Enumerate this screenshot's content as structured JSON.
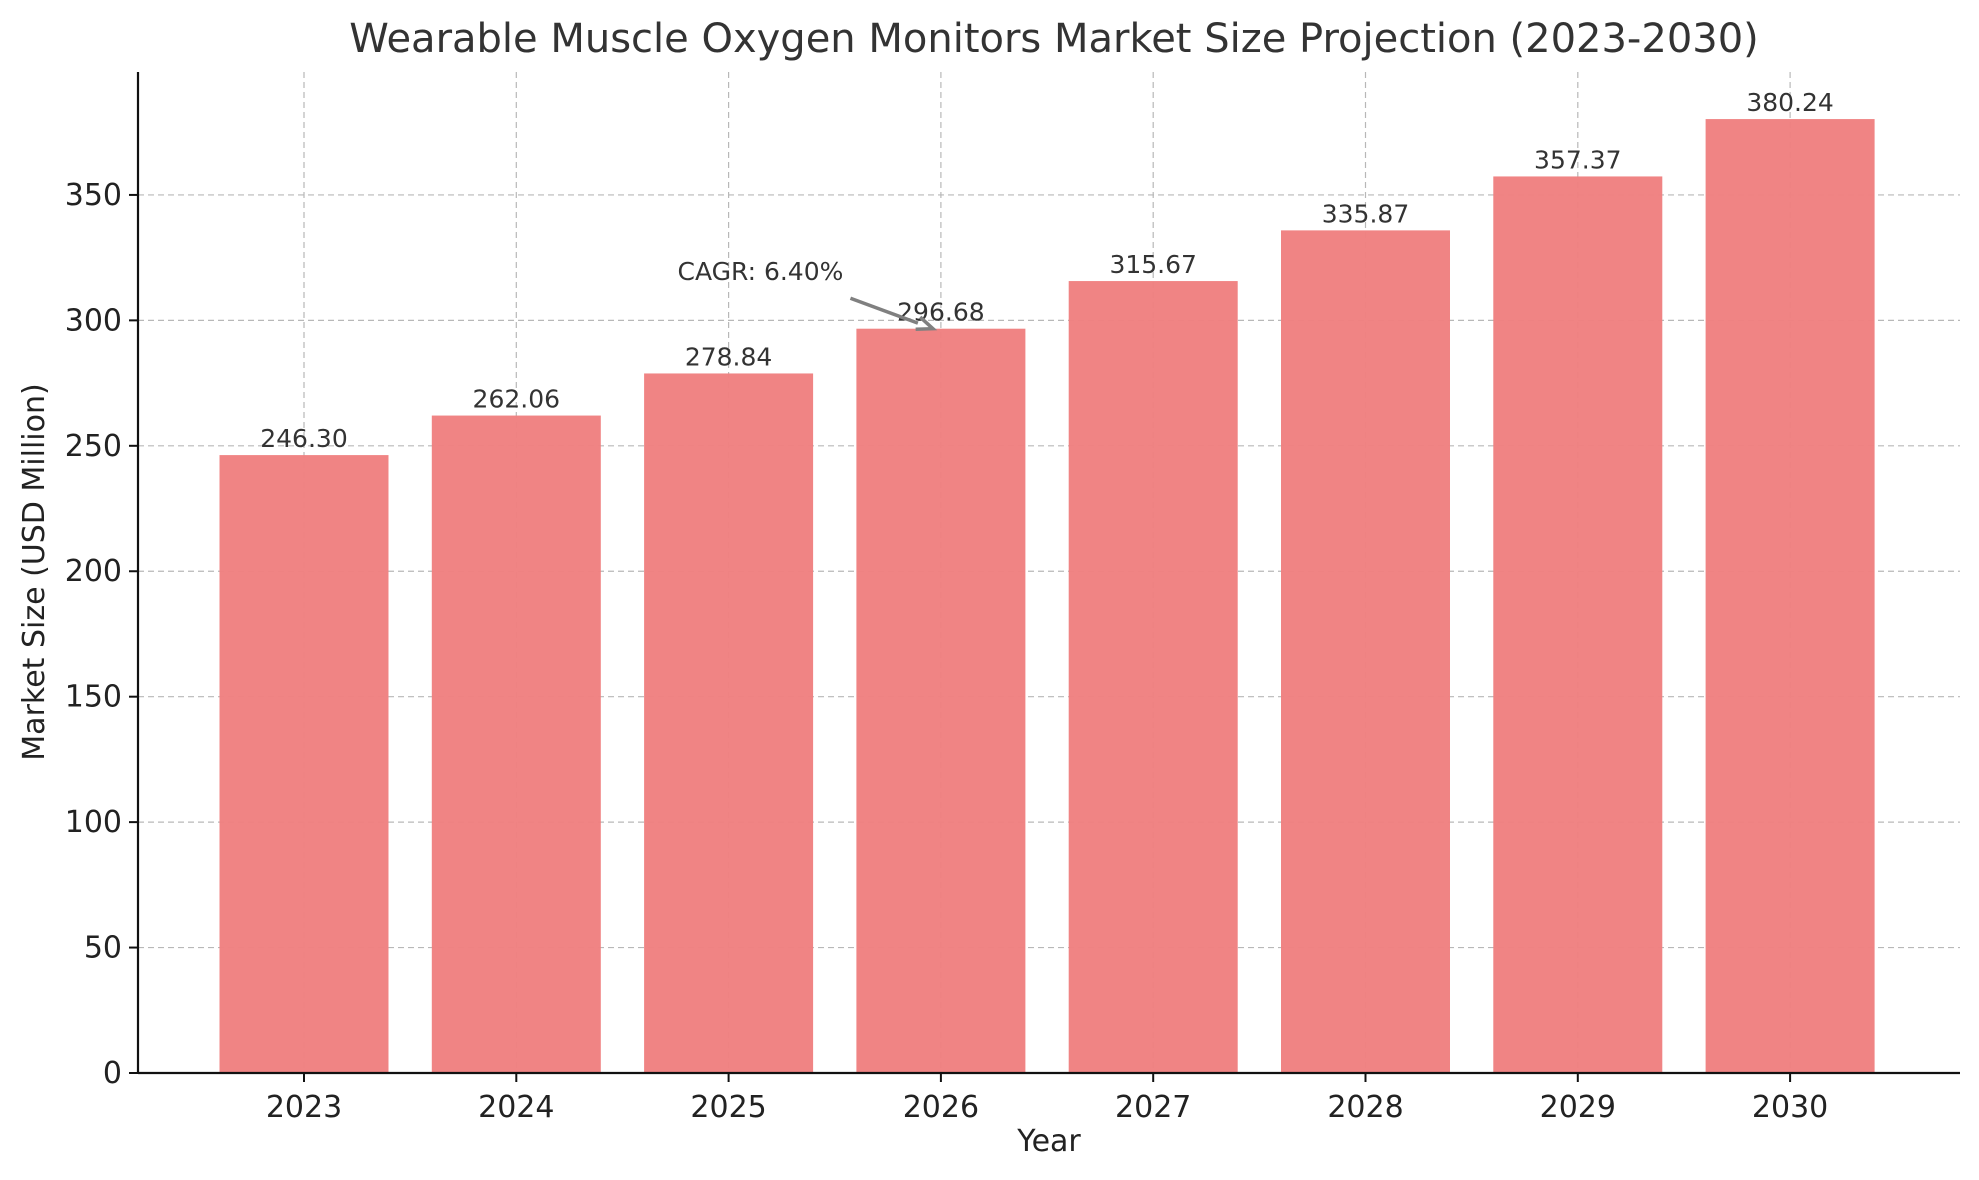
{
  "chart_data": {
    "type": "bar",
    "title": "Wearable Muscle Oxygen Monitors Market Size Projection (2023-2030)",
    "xlabel": "Year",
    "ylabel": "Market Size (USD Million)",
    "categories": [
      "2023",
      "2024",
      "2025",
      "2026",
      "2027",
      "2028",
      "2029",
      "2030"
    ],
    "values": [
      246.3,
      262.06,
      278.84,
      296.68,
      315.67,
      335.87,
      357.37,
      380.24
    ],
    "value_labels": [
      "246.30",
      "262.06",
      "278.84",
      "296.68",
      "315.67",
      "335.87",
      "357.37",
      "380.24"
    ],
    "ylim": [
      0,
      399
    ],
    "yticks": [
      0,
      50,
      100,
      150,
      200,
      250,
      300,
      350
    ],
    "grid": true,
    "bar_color": "#f08080",
    "annotation": {
      "text": "CAGR: 6.40%",
      "target_category": "2026",
      "text_x": 2025.15,
      "text_y": 316,
      "arrow_color": "#808080"
    }
  }
}
